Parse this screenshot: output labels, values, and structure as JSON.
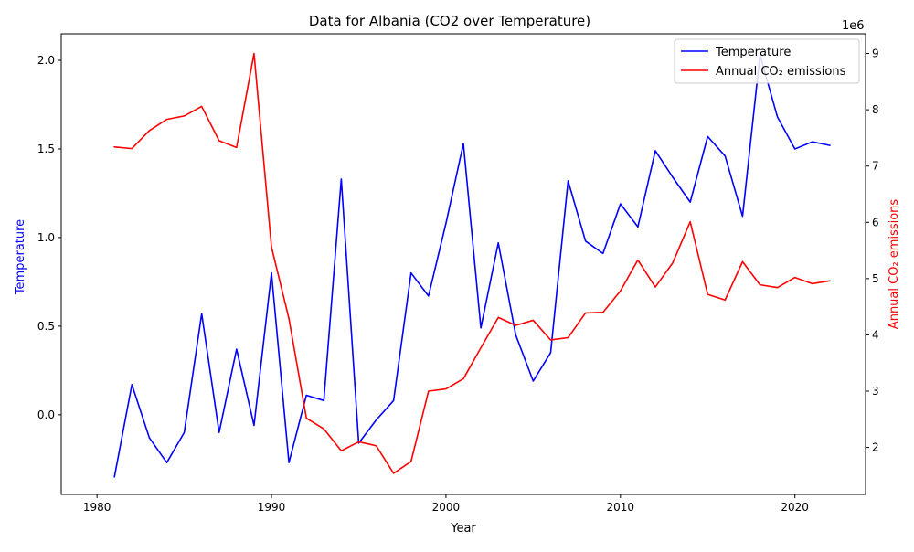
{
  "chart_data": {
    "type": "line",
    "title": "Data for Albania (CO2 over Temperature)",
    "xlabel": "Year",
    "ylabel_left": "Temperature",
    "ylabel_right": "Annual CO₂ emissions",
    "right_axis_offset_label": "1e6",
    "x": [
      1981,
      1982,
      1983,
      1984,
      1985,
      1986,
      1987,
      1988,
      1989,
      1990,
      1991,
      1992,
      1993,
      1994,
      1995,
      1996,
      1997,
      1998,
      1999,
      2000,
      2001,
      2002,
      2003,
      2004,
      2005,
      2006,
      2007,
      2008,
      2009,
      2010,
      2011,
      2012,
      2013,
      2014,
      2015,
      2016,
      2017,
      2018,
      2019,
      2020,
      2021,
      2022
    ],
    "xlim": [
      1977.95,
      2024.05
    ],
    "x_ticks": [
      1980,
      1990,
      2000,
      2010,
      2020
    ],
    "left_ylim": [
      -0.4495,
      2.1495
    ],
    "left_y_ticks": [
      0.0,
      0.5,
      1.0,
      1.5,
      2.0
    ],
    "left_y_tick_labels": [
      "0.0",
      "0.5",
      "1.0",
      "1.5",
      "2.0"
    ],
    "right_ylim": [
      1.165,
      9.35
    ],
    "right_y_ticks": [
      2,
      3,
      4,
      5,
      6,
      7,
      8,
      9
    ],
    "legend_position": "upper right",
    "series": [
      {
        "name": "Temperature",
        "axis": "left",
        "color": "#0000ff",
        "values": [
          -0.35,
          0.17,
          -0.13,
          -0.27,
          -0.1,
          0.57,
          -0.1,
          0.37,
          -0.06,
          0.8,
          -0.27,
          0.11,
          0.08,
          1.33,
          -0.16,
          -0.03,
          0.08,
          0.8,
          0.67,
          1.08,
          1.53,
          0.49,
          0.97,
          0.45,
          0.19,
          0.35,
          1.32,
          0.98,
          0.91,
          1.19,
          1.06,
          1.49,
          1.34,
          1.2,
          1.57,
          1.46,
          1.12,
          2.03,
          1.68,
          1.5,
          1.54,
          1.52
        ]
      },
      {
        "name": "Annual CO₂ emissions",
        "axis": "right",
        "color": "#ff0000",
        "unit_multiplier": 1000000,
        "values": [
          7.34,
          7.31,
          7.63,
          7.83,
          7.89,
          8.06,
          7.45,
          7.33,
          9.0,
          5.56,
          4.29,
          2.52,
          2.33,
          1.94,
          2.1,
          2.03,
          1.54,
          1.75,
          3.0,
          3.04,
          3.22,
          3.77,
          4.31,
          4.17,
          4.26,
          3.91,
          3.95,
          4.39,
          4.4,
          4.78,
          5.33,
          4.85,
          5.28,
          6.01,
          4.72,
          4.62,
          5.3,
          4.89,
          4.84,
          5.02,
          4.91,
          4.96
        ]
      }
    ]
  }
}
